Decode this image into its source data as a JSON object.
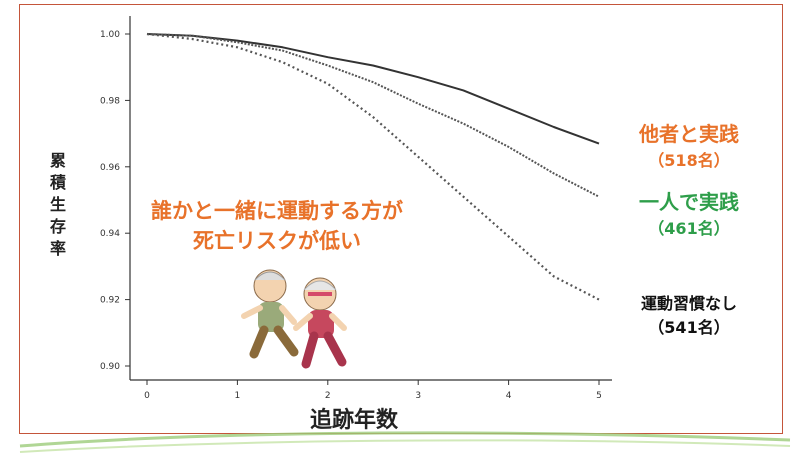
{
  "chart_data": {
    "type": "line",
    "ylabel": "累積生存率",
    "xlabel": "追跡年数",
    "xlim": [
      0,
      5
    ],
    "ylim": [
      0.9,
      1.0
    ],
    "xticks": [
      "0",
      "1",
      "2",
      "3",
      "4",
      "5"
    ],
    "yticks": [
      "0.90",
      "0.92",
      "0.94",
      "0.96",
      "0.98",
      "1.00"
    ],
    "annotation": [
      "誰かと一緒に運動する方が",
      "死亡リスクが低い"
    ],
    "series": [
      {
        "name": "他者と実践",
        "count_label": "（518名）",
        "color": "#e8722a",
        "line_color": "#333333",
        "style": "solid",
        "x": [
          0,
          0.5,
          1,
          1.5,
          2,
          2.5,
          3,
          3.5,
          4,
          4.5,
          5
        ],
        "y": [
          1.0,
          0.9995,
          0.998,
          0.996,
          0.993,
          0.9905,
          0.987,
          0.983,
          0.9775,
          0.972,
          0.967
        ]
      },
      {
        "name": "一人で実践",
        "count_label": "（461名）",
        "color": "#2e9e4a",
        "line_color": "#555555",
        "style": "dotted-fine",
        "x": [
          0,
          0.5,
          1,
          1.5,
          2,
          2.5,
          3,
          3.5,
          4,
          4.5,
          5
        ],
        "y": [
          1.0,
          0.9995,
          0.9975,
          0.995,
          0.9905,
          0.9855,
          0.979,
          0.973,
          0.966,
          0.958,
          0.951
        ]
      },
      {
        "name": "運動習慣なし",
        "count_label": "（541名）",
        "color": "#111111",
        "line_color": "#555555",
        "style": "dotted-coarse",
        "x": [
          0,
          0.5,
          1,
          1.5,
          2,
          2.5,
          3,
          3.5,
          4,
          4.5,
          5
        ],
        "y": [
          1.0,
          0.9985,
          0.996,
          0.9915,
          0.985,
          0.975,
          0.963,
          0.951,
          0.939,
          0.927,
          0.92
        ]
      }
    ]
  }
}
